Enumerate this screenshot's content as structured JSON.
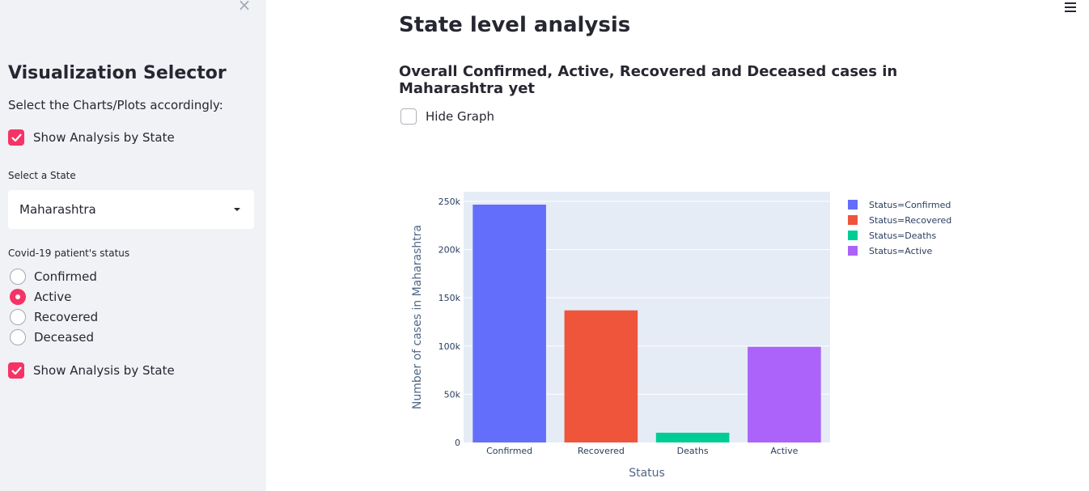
{
  "sidebar": {
    "close_icon": "×",
    "title": "Visualization Selector",
    "subtitle": "Select the Charts/Plots accordingly:",
    "show_state_checkbox_1": {
      "label": "Show Analysis by State",
      "checked": true
    },
    "state_select": {
      "label": "Select a State",
      "value": "Maharashtra"
    },
    "status_radio": {
      "label": "Covid-19 patient's status",
      "options": [
        "Confirmed",
        "Active",
        "Recovered",
        "Deceased"
      ],
      "selected": "Active"
    },
    "show_state_checkbox_2": {
      "label": "Show Analysis by State",
      "checked": true
    }
  },
  "main": {
    "title": "State level analysis",
    "subtitle": "Overall Confirmed, Active, Recovered and Deceased cases in Maharashtra yet",
    "hide_graph_checkbox": {
      "label": "Hide Graph",
      "checked": false
    }
  },
  "accent_color": "#f63366",
  "chart_data": {
    "type": "bar",
    "categories": [
      "Confirmed",
      "Recovered",
      "Deaths",
      "Active"
    ],
    "values": [
      246600,
      136985,
      10116,
      99202
    ],
    "colors": [
      "#636efa",
      "#ef553b",
      "#00cc96",
      "#ab63fa"
    ],
    "legend": [
      "Status=Confirmed",
      "Status=Recovered",
      "Status=Deaths",
      "Status=Active"
    ],
    "legend_placement": "top-right",
    "xlabel": "Status",
    "ylabel": "Number of cases in Maharashtra",
    "ylim": [
      0,
      260000
    ],
    "yticks": [
      0,
      50000,
      100000,
      150000,
      200000,
      250000
    ],
    "ytick_labels": [
      "0",
      "50k",
      "100k",
      "150k",
      "200k",
      "250k"
    ],
    "grid": true,
    "plot_bgcolor": "#e5ecf6"
  }
}
